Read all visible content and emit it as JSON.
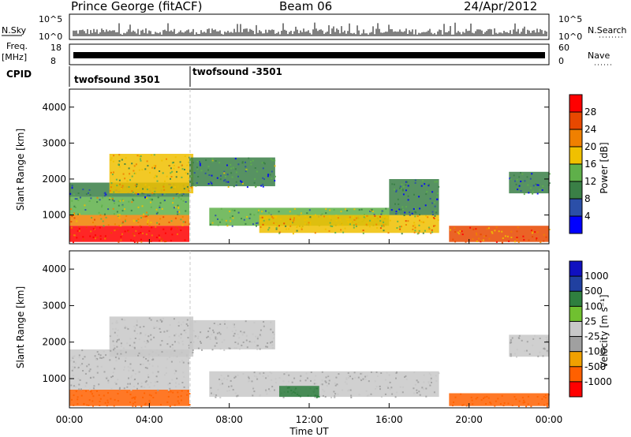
{
  "header": {
    "station": "Prince George (fitACF)",
    "beam": "Beam 06",
    "date": "24/Apr/2012"
  },
  "panels": {
    "nsky_label": "N.Sky",
    "nsky_ticks": [
      "10^5",
      "10^0"
    ],
    "nsearch_label": "N.Search",
    "nsearch_ticks": [
      "10^5",
      "10^0"
    ],
    "freq_label_1": "Freq.",
    "freq_label_2": "[MHz]",
    "freq_ticks": [
      "18",
      "8"
    ],
    "nave_label": "Nave",
    "nave_ticks": [
      "60",
      "0"
    ],
    "cpid_label": "CPID",
    "cpid_segments": [
      {
        "label": "twofsound 3501",
        "start_hour": 0,
        "end_hour": 6
      },
      {
        "label": "twofsound -3501",
        "start_hour": 6,
        "end_hour": 24
      }
    ]
  },
  "colors": {
    "power_scale": [
      "#0000ff",
      "#2b4fa8",
      "#3a7f46",
      "#5fb04a",
      "#f0c000",
      "#f08000",
      "#e84800",
      "#ff0000"
    ],
    "velocity_scale": [
      "#ff0000",
      "#ff6000",
      "#f0a000",
      "#a0a0a0",
      "#c8c8c8",
      "#70c030",
      "#2f7f3f",
      "#2040a0",
      "#1010c0"
    ]
  },
  "chart_data": [
    {
      "type": "heatmap",
      "name": "power",
      "ylabel": "Slant Range [km]",
      "ylim": [
        200,
        4500
      ],
      "yticks": [
        "1000",
        "2000",
        "3000",
        "4000"
      ],
      "xlim_hours": [
        0,
        24
      ],
      "colorbar_label": "Power [dB]",
      "colorbar_ticks": [
        "4",
        "8",
        "12",
        "16",
        "20",
        "24",
        "28"
      ],
      "regions": [
        {
          "t0": 0.0,
          "t1": 6.0,
          "r0": 250,
          "r1": 700,
          "level": 28
        },
        {
          "t0": 0.0,
          "t1": 6.0,
          "r0": 700,
          "r1": 1000,
          "level": 20
        },
        {
          "t0": 0.0,
          "t1": 6.0,
          "r0": 1000,
          "r1": 1500,
          "level": 14
        },
        {
          "t0": 0.0,
          "t1": 6.0,
          "r0": 1500,
          "r1": 1900,
          "level": 8
        },
        {
          "t0": 2.0,
          "t1": 6.2,
          "r0": 1600,
          "r1": 2700,
          "level": 16
        },
        {
          "t0": 6.0,
          "t1": 10.3,
          "r0": 1800,
          "r1": 2600,
          "level": 10
        },
        {
          "t0": 7.0,
          "t1": 16.0,
          "r0": 700,
          "r1": 1200,
          "level": 12
        },
        {
          "t0": 9.5,
          "t1": 18.5,
          "r0": 500,
          "r1": 1000,
          "level": 18
        },
        {
          "t0": 16.0,
          "t1": 18.5,
          "r0": 1000,
          "r1": 2000,
          "level": 8
        },
        {
          "t0": 19.0,
          "t1": 24.0,
          "r0": 250,
          "r1": 700,
          "level": 24
        },
        {
          "t0": 22.0,
          "t1": 24.0,
          "r0": 1600,
          "r1": 2200,
          "level": 8
        }
      ]
    },
    {
      "type": "heatmap",
      "name": "velocity",
      "ylabel": "Slant Range [km]",
      "ylim": [
        200,
        4500
      ],
      "yticks": [
        "1000",
        "2000",
        "3000",
        "4000"
      ],
      "xlim_hours": [
        0,
        24
      ],
      "xticks": [
        "00:00",
        "04:00",
        "08:00",
        "12:00",
        "16:00",
        "20:00",
        "00:00"
      ],
      "xlabel": "Time UT",
      "colorbar_label": "Velocity [m s⁻¹]",
      "colorbar_ticks": [
        "-1000",
        "-500",
        "-100",
        "-25",
        "25",
        "100",
        "500",
        "1000"
      ],
      "regions": [
        {
          "t0": 0.0,
          "t1": 6.0,
          "r0": 250,
          "r1": 700,
          "level": -120
        },
        {
          "t0": 0.0,
          "t1": 6.0,
          "r0": 700,
          "r1": 1800,
          "level": 0
        },
        {
          "t0": 2.0,
          "t1": 6.2,
          "r0": 1600,
          "r1": 2700,
          "level": 0
        },
        {
          "t0": 6.0,
          "t1": 10.3,
          "r0": 1800,
          "r1": 2600,
          "level": 0
        },
        {
          "t0": 7.0,
          "t1": 18.5,
          "r0": 500,
          "r1": 1200,
          "level": 0
        },
        {
          "t0": 10.5,
          "t1": 12.5,
          "r0": 500,
          "r1": 800,
          "level": 120
        },
        {
          "t0": 19.0,
          "t1": 24.0,
          "r0": 250,
          "r1": 600,
          "level": -120
        },
        {
          "t0": 22.0,
          "t1": 24.0,
          "r0": 1600,
          "r1": 2200,
          "level": 0
        }
      ]
    }
  ]
}
